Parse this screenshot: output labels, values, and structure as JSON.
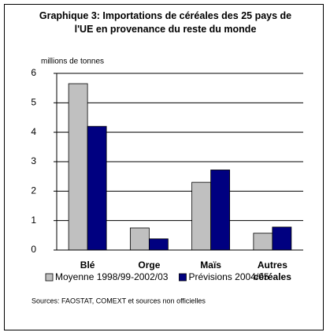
{
  "chart_data": {
    "type": "bar",
    "title": "Graphique 3: Importations de céréales des 25 pays de l'UE en provenance du reste du monde",
    "y_label": "millions de tonnes",
    "categories": [
      "Blé",
      "Orge",
      "Maïs",
      "Autres céréales"
    ],
    "series": [
      {
        "name": "Moyenne 1998/99-2002/03",
        "color": "#c0c0c0",
        "values": [
          5.65,
          0.75,
          2.3,
          0.57
        ]
      },
      {
        "name": "Prévisions 2004/05",
        "color": "#000080",
        "values": [
          4.2,
          0.38,
          2.72,
          0.78
        ]
      }
    ],
    "ylim": [
      0,
      6
    ],
    "yticks": [
      0,
      1,
      2,
      3,
      4,
      5,
      6
    ],
    "grid": true,
    "legend": "bottom",
    "source": "Sources: FAOSTAT, COMEXT et sources non officielles"
  }
}
